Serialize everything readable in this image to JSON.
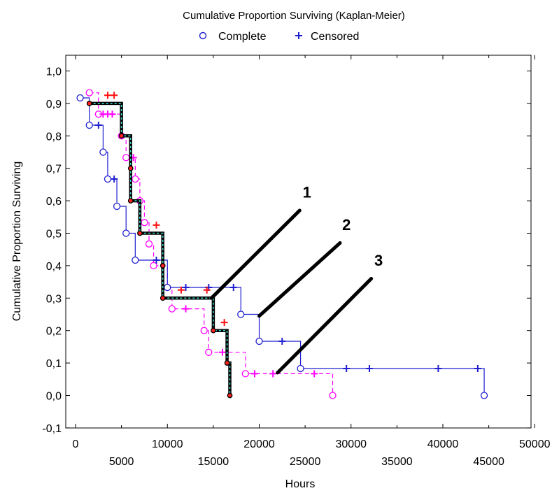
{
  "chart_data": {
    "type": "line",
    "title": "Cumulative Proportion Surviving (Kaplan-Meier)",
    "xlabel": "Hours",
    "ylabel": "Cumulative Proportion Surviving",
    "xlim": [
      -1000,
      50000
    ],
    "ylim": [
      -0.1,
      1.0
    ],
    "x_ticks_upper": [
      0,
      10000,
      20000,
      30000,
      40000,
      50000
    ],
    "x_ticks_lower": [
      5000,
      15000,
      25000,
      35000,
      45000
    ],
    "y_ticks": [
      -0.1,
      0.0,
      0.1,
      0.2,
      0.3,
      0.4,
      0.5,
      0.6,
      0.7,
      0.8,
      0.9,
      1.0
    ],
    "y_tick_labels": [
      "-0,1",
      "0,0",
      "0,1",
      "0,2",
      "0,3",
      "0,4",
      "0,5",
      "0,6",
      "0,7",
      "0,8",
      "0,9",
      "1,0"
    ],
    "grid": false,
    "legend": {
      "placement": "top",
      "entries": [
        {
          "label": "Complete",
          "marker": "circle",
          "color": "#1f1fd0"
        },
        {
          "label": "Censored",
          "marker": "plus",
          "color": "#1f1fd0"
        }
      ]
    },
    "series": [
      {
        "color": "#ff00ff",
        "dashed": true,
        "steps": [
          [
            1500,
            0.933
          ],
          [
            2500,
            0.867
          ],
          [
            5000,
            0.8
          ],
          [
            5500,
            0.733
          ],
          [
            6500,
            0.667
          ],
          [
            7000,
            0.6
          ],
          [
            7500,
            0.533
          ],
          [
            8000,
            0.467
          ],
          [
            8500,
            0.4
          ],
          [
            10000,
            0.333
          ],
          [
            10500,
            0.267
          ],
          [
            14000,
            0.2
          ],
          [
            14500,
            0.133
          ],
          [
            18500,
            0.067
          ],
          [
            28000,
            0.0
          ]
        ],
        "complete_points": [
          [
            1500,
            0.933
          ],
          [
            2500,
            0.867
          ],
          [
            5000,
            0.8
          ],
          [
            5500,
            0.733
          ],
          [
            6500,
            0.667
          ],
          [
            7000,
            0.6
          ],
          [
            7500,
            0.533
          ],
          [
            8000,
            0.467
          ],
          [
            8500,
            0.4
          ],
          [
            10000,
            0.333
          ],
          [
            10500,
            0.267
          ],
          [
            14000,
            0.2
          ],
          [
            14500,
            0.133
          ],
          [
            18500,
            0.067
          ],
          [
            28000,
            0.0
          ]
        ],
        "censored_points": [
          [
            3000,
            0.867
          ],
          [
            3500,
            0.867
          ],
          [
            4000,
            0.867
          ],
          [
            6300,
            0.733
          ],
          [
            12000,
            0.267
          ],
          [
            16000,
            0.133
          ],
          [
            19500,
            0.067
          ],
          [
            21500,
            0.067
          ],
          [
            26000,
            0.067
          ]
        ]
      },
      {
        "color": "#1f1fd0",
        "dashed": false,
        "steps": [
          [
            500,
            0.917
          ],
          [
            1500,
            0.833
          ],
          [
            3000,
            0.75
          ],
          [
            3500,
            0.667
          ],
          [
            4500,
            0.583
          ],
          [
            5500,
            0.5
          ],
          [
            6500,
            0.417
          ],
          [
            10000,
            0.333
          ],
          [
            18000,
            0.25
          ],
          [
            20000,
            0.167
          ],
          [
            24500,
            0.083
          ],
          [
            44500,
            0.0
          ]
        ],
        "complete_points": [
          [
            500,
            0.917
          ],
          [
            1500,
            0.833
          ],
          [
            3000,
            0.75
          ],
          [
            3500,
            0.667
          ],
          [
            4500,
            0.583
          ],
          [
            5500,
            0.5
          ],
          [
            6500,
            0.417
          ],
          [
            10000,
            0.333
          ],
          [
            18000,
            0.25
          ],
          [
            20000,
            0.167
          ],
          [
            24500,
            0.083
          ],
          [
            44500,
            0.0
          ]
        ],
        "censored_points": [
          [
            2500,
            0.833
          ],
          [
            4200,
            0.667
          ],
          [
            8800,
            0.417
          ],
          [
            12000,
            0.333
          ],
          [
            14500,
            0.333
          ],
          [
            17200,
            0.333
          ],
          [
            22500,
            0.167
          ],
          [
            29500,
            0.083
          ],
          [
            32000,
            0.083
          ],
          [
            39500,
            0.083
          ],
          [
            43800,
            0.083
          ]
        ]
      },
      {
        "color": "#000000",
        "dashed": false,
        "bold": true,
        "steps": [
          [
            1500,
            0.9
          ],
          [
            5000,
            0.8
          ],
          [
            6000,
            0.7
          ],
          [
            6000,
            0.6
          ],
          [
            7000,
            0.5
          ],
          [
            9500,
            0.4
          ],
          [
            9500,
            0.3
          ],
          [
            15000,
            0.2
          ],
          [
            16500,
            0.1
          ],
          [
            16800,
            0.0
          ]
        ],
        "complete_points": [
          [
            1500,
            0.9
          ],
          [
            5000,
            0.8
          ],
          [
            6000,
            0.7
          ],
          [
            6000,
            0.6
          ],
          [
            7000,
            0.5
          ],
          [
            9500,
            0.4
          ],
          [
            9500,
            0.3
          ],
          [
            15000,
            0.2
          ],
          [
            16500,
            0.1
          ],
          [
            16800,
            0.0
          ]
        ],
        "censored_points": [
          [
            3500,
            0.925
          ],
          [
            4200,
            0.925
          ],
          [
            8800,
            0.525
          ],
          [
            11500,
            0.325
          ],
          [
            14300,
            0.325
          ],
          [
            16200,
            0.225
          ]
        ]
      }
    ],
    "annotations": [
      {
        "label": "1",
        "line": [
          [
            14800,
            0.3
          ],
          [
            24400,
            0.57
          ]
        ],
        "label_at": [
          25200,
          0.61
        ]
      },
      {
        "label": "2",
        "line": [
          [
            20000,
            0.245
          ],
          [
            28800,
            0.47
          ]
        ],
        "label_at": [
          29500,
          0.51
        ]
      },
      {
        "label": "3",
        "line": [
          [
            22000,
            0.07
          ],
          [
            32200,
            0.36
          ]
        ],
        "label_at": [
          33000,
          0.4
        ]
      }
    ]
  }
}
